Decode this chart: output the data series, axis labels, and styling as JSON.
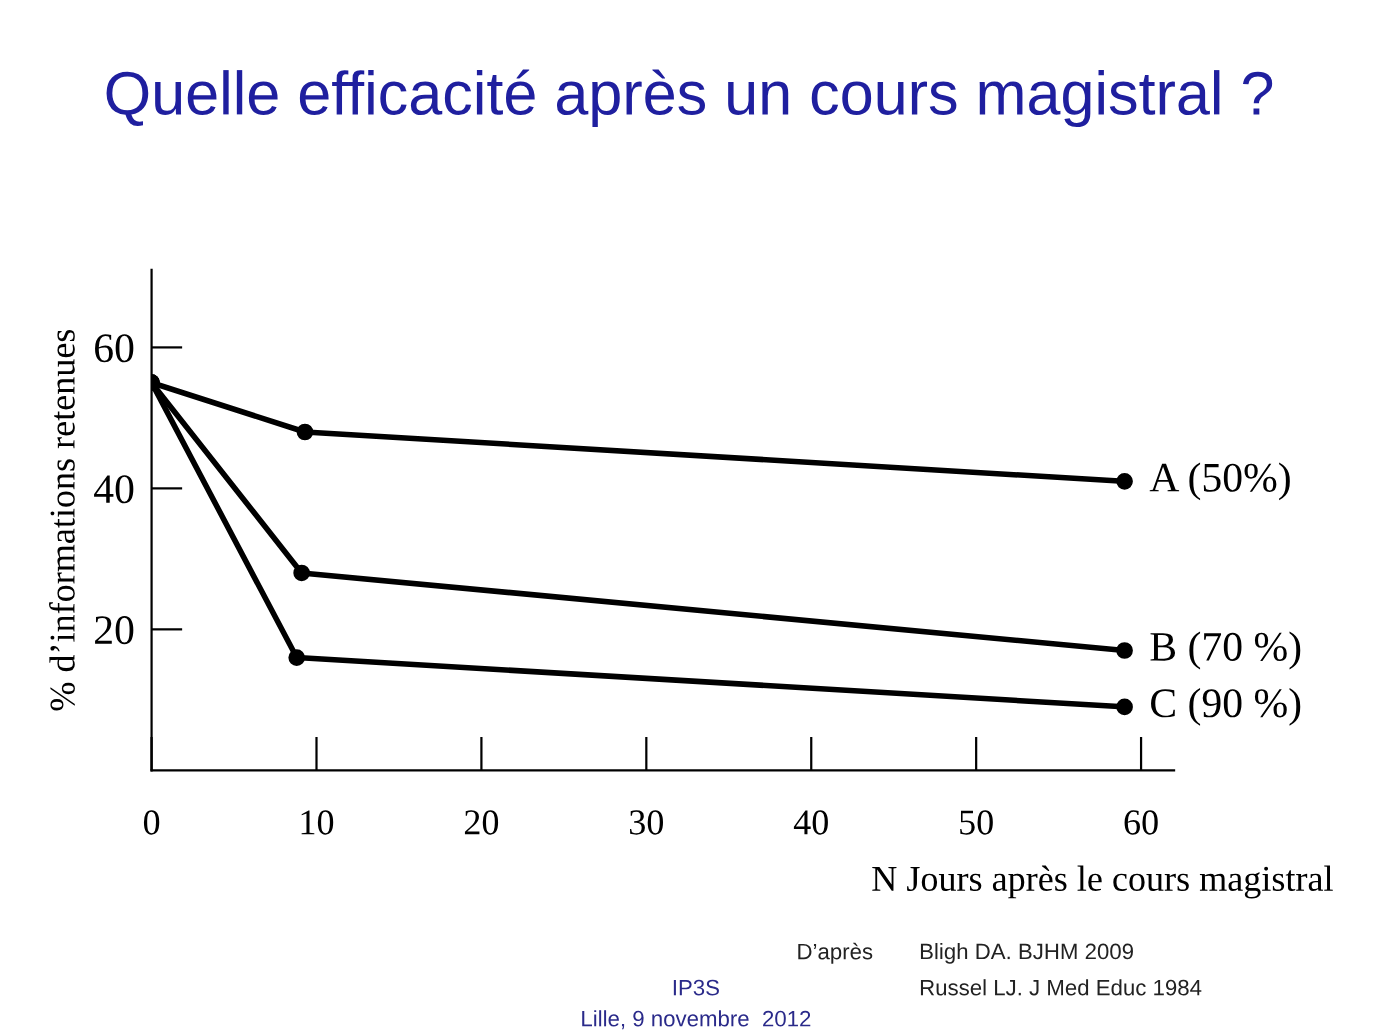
{
  "chart_data": {
    "type": "line",
    "title": "Quelle efficacité après un cours magistral ?",
    "xlabel": "N Jours après le cours magistral",
    "ylabel": "% d’informations retenues",
    "series": [
      {
        "name": "A (50%)",
        "color": "#000000",
        "x": [
          0,
          9.3,
          59
        ],
        "values": [
          55,
          48,
          41
        ]
      },
      {
        "name": "B (70 %)",
        "color": "#000000",
        "x": [
          0,
          9.1,
          59
        ],
        "values": [
          55,
          28,
          17
        ]
      },
      {
        "name": "C (90 %)",
        "color": "#000000",
        "x": [
          0,
          8.8,
          59
        ],
        "values": [
          55,
          16,
          9
        ]
      }
    ],
    "xlim": [
      0,
      62
    ],
    "xticks": [
      0,
      10,
      20,
      30,
      40,
      50,
      60
    ],
    "ylim": [
      0,
      71
    ],
    "yticks": [
      20,
      40,
      60
    ],
    "marker": "circle",
    "line_style": "solid",
    "grid": false,
    "legend": false,
    "annotations": [
      "D’après",
      "Bligh DA. BJHM 2009",
      "Russel LJ. J Med Educ 1984",
      "IP3S",
      "Lille, 9 novembre  2012"
    ]
  }
}
